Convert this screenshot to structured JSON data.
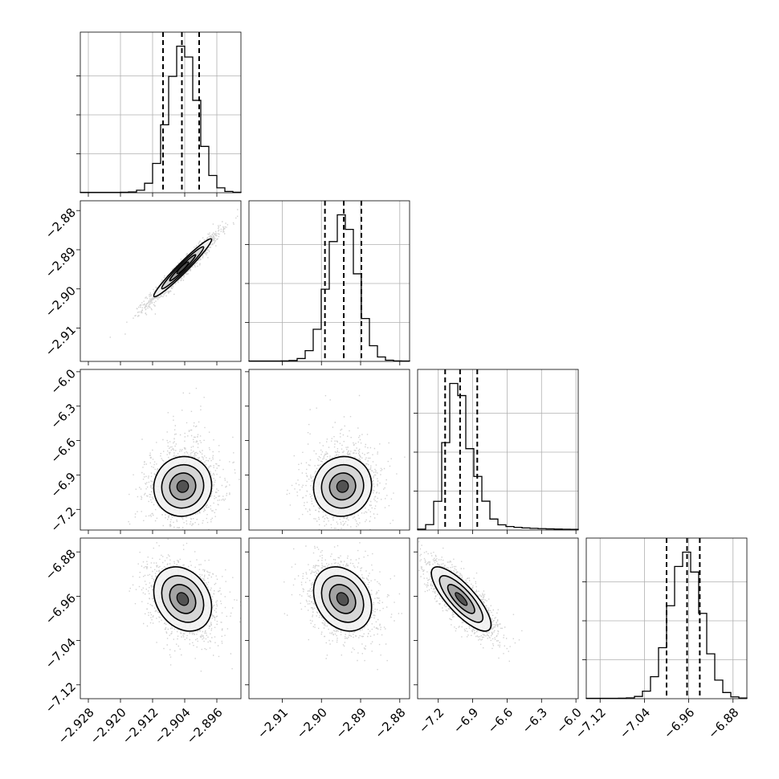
{
  "chart_data": {
    "type": "corner",
    "n_params": 4,
    "grid": true,
    "params": [
      {
        "range": [
          -2.93,
          -2.89
        ],
        "ticks": [
          "−2.928",
          "−2.920",
          "−2.912",
          "−2.904",
          "−2.896"
        ],
        "tick_values": [
          -2.928,
          -2.92,
          -2.912,
          -2.904,
          -2.896
        ],
        "mean": -2.9045,
        "sd": 0.0036,
        "quantiles": [
          -2.9094,
          -2.9047,
          -2.9004
        ]
      },
      {
        "range": [
          -2.9185,
          -2.8775
        ],
        "ticks": [
          "−2.91",
          "−2.90",
          "−2.89",
          "−2.88"
        ],
        "tick_values": [
          -2.91,
          -2.9,
          -2.89,
          -2.88
        ],
        "mean": -2.8946,
        "sd": 0.0037,
        "quantiles": [
          -2.8991,
          -2.8943,
          -2.8898
        ]
      },
      {
        "range": [
          -7.38,
          -5.98
        ],
        "ticks": [
          "−7.2",
          "−6.9",
          "−6.6",
          "−6.3",
          "−6.0"
        ],
        "tick_values": [
          -7.2,
          -6.9,
          -6.6,
          -6.3,
          -6.0
        ],
        "mean": -7.0,
        "sd": 0.13,
        "quantiles": [
          -7.14,
          -7.01,
          -6.86
        ]
      },
      {
        "range": [
          -7.145,
          -6.855
        ],
        "ticks": [
          "−7.12",
          "−7.04",
          "−6.96",
          "−6.88"
        ],
        "tick_values": [
          -7.12,
          -7.04,
          -6.96,
          -6.88
        ],
        "mean": -6.965,
        "sd": 0.029,
        "quantiles": [
          -7.0,
          -6.963,
          -6.94
        ]
      }
    ],
    "correlations": {
      "0-1": 0.97,
      "0-2": 0.05,
      "1-2": 0.05,
      "0-3": -0.25,
      "1-3": -0.25,
      "2-3": -0.8
    }
  }
}
